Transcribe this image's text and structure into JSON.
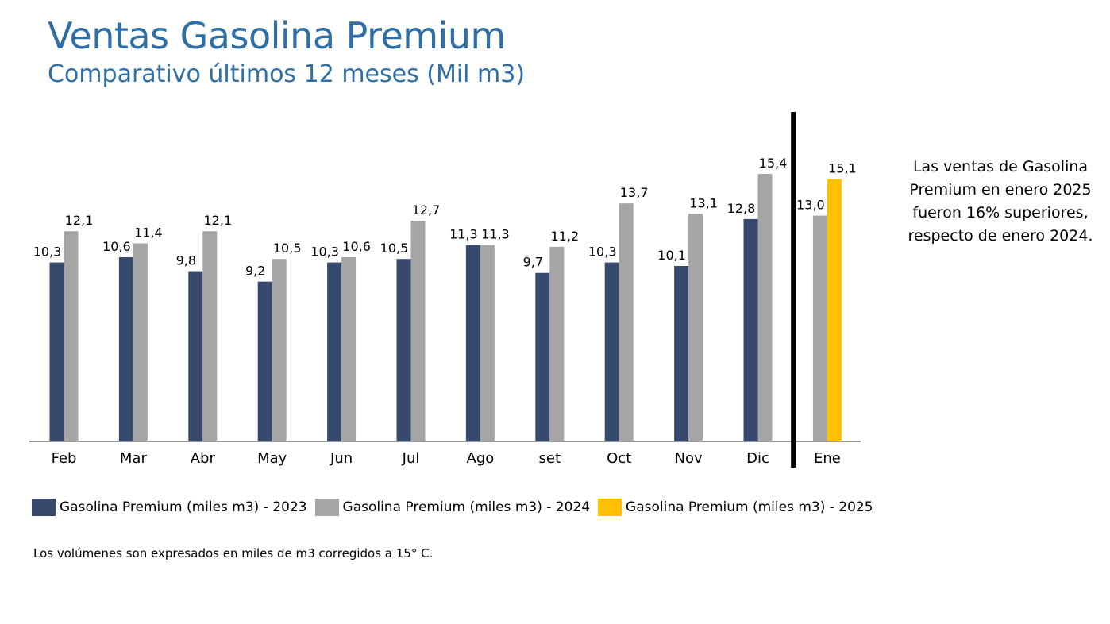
{
  "header": {
    "title": "Ventas Gasolina Premium",
    "subtitle": "Comparativo últimos 12 meses (Mil m3)"
  },
  "note": "Las ventas de Gasolina Premium en enero 2025 fueron 16% superiores, respecto de enero 2024.",
  "footnote": "Los volúmenes son expresados en miles de m3 corregidos a 15° C.",
  "colors": {
    "s2023": "#374a6d",
    "s2024": "#a5a5a5",
    "s2025": "#ffc000",
    "title": "#2e6fa7"
  },
  "chart_data": {
    "type": "bar",
    "categories": [
      "Feb",
      "Mar",
      "Abr",
      "May",
      "Jun",
      "Jul",
      "Ago",
      "set",
      "Oct",
      "Nov",
      "Dic",
      "Ene"
    ],
    "series": [
      {
        "name": "Gasolina Premium (miles m3) - 2023",
        "values": [
          10.3,
          10.6,
          9.8,
          9.2,
          10.3,
          10.5,
          11.3,
          9.7,
          10.3,
          10.1,
          12.8,
          null
        ],
        "labels": [
          "10,3",
          "10,6",
          "9,8",
          "9,2",
          "10,3",
          "10,5",
          "11,3",
          "9,7",
          "10,3",
          "10,1",
          "12,8",
          ""
        ]
      },
      {
        "name": "Gasolina Premium (miles m3) - 2024",
        "values": [
          12.1,
          11.4,
          12.1,
          10.5,
          10.6,
          12.7,
          11.3,
          11.2,
          13.7,
          13.1,
          15.4,
          13.0
        ],
        "labels": [
          "12,1",
          "11,4",
          "12,1",
          "10,5",
          "10,6",
          "12,7",
          "11,3",
          "11,2",
          "13,7",
          "13,1",
          "15,4",
          "13,0"
        ]
      },
      {
        "name": "Gasolina Premium (miles m3) - 2025",
        "values": [
          null,
          null,
          null,
          null,
          null,
          null,
          null,
          null,
          null,
          null,
          null,
          15.1
        ],
        "labels": [
          "",
          "",
          "",
          "",
          "",
          "",
          "",
          "",
          "",
          "",
          "",
          "15,1"
        ]
      }
    ],
    "ylim": [
      0,
      15.4
    ],
    "grid": false,
    "legend_position": "bottom-left",
    "divider_before_category": "Ene"
  }
}
